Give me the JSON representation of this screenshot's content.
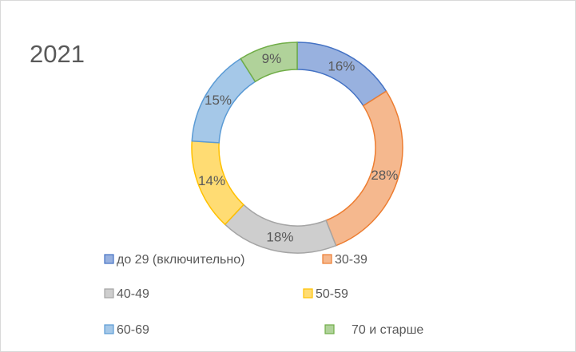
{
  "chart_data": {
    "type": "donut",
    "title": "2021",
    "categories": [
      "до 29 (включительно)",
      "30-39",
      "40-49",
      "50-59",
      "60-69",
      "70 и старше"
    ],
    "values": [
      16,
      28,
      18,
      14,
      15,
      9
    ],
    "value_labels": [
      "16%",
      "28%",
      "18%",
      "14%",
      "15%",
      "9%"
    ],
    "colors": [
      "#4472c4",
      "#ed7d31",
      "#a5a5a5",
      "#ffc000",
      "#5b9bd5",
      "#70ad47"
    ],
    "legend": "bottom"
  }
}
